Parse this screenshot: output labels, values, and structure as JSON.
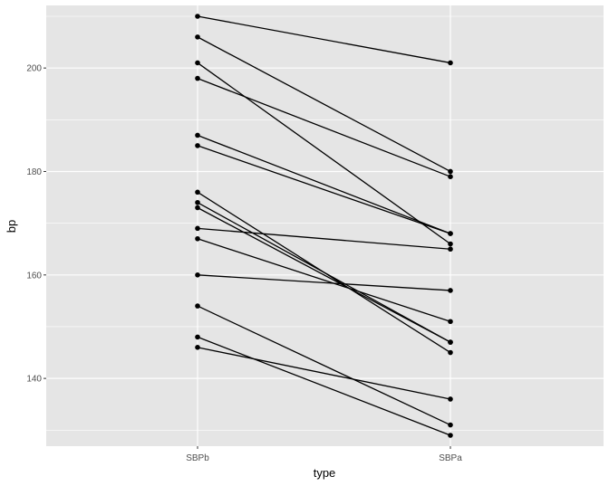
{
  "chart_data": {
    "type": "line",
    "xlabel": "type",
    "ylabel": "bp",
    "categories": [
      "SBPb",
      "SBPa"
    ],
    "ylim": [
      126.9,
      212.1
    ],
    "yticks": [
      140,
      160,
      180,
      200
    ],
    "grid": true,
    "series": [
      {
        "values": [
          210,
          201
        ]
      },
      {
        "values": [
          206,
          180
        ]
      },
      {
        "values": [
          201,
          166
        ]
      },
      {
        "values": [
          198,
          179
        ]
      },
      {
        "values": [
          187,
          168
        ]
      },
      {
        "values": [
          185,
          168
        ]
      },
      {
        "values": [
          176,
          145
        ]
      },
      {
        "values": [
          174,
          147
        ]
      },
      {
        "values": [
          173,
          147
        ]
      },
      {
        "values": [
          169,
          165
        ]
      },
      {
        "values": [
          167,
          151
        ]
      },
      {
        "values": [
          160,
          157
        ]
      },
      {
        "values": [
          154,
          131
        ]
      },
      {
        "values": [
          148,
          129
        ]
      },
      {
        "values": [
          146,
          136
        ]
      }
    ],
    "colors": {
      "panel_background": "#e5e5e5",
      "grid": "#ffffff",
      "line": "#000000",
      "point": "#000000"
    }
  }
}
